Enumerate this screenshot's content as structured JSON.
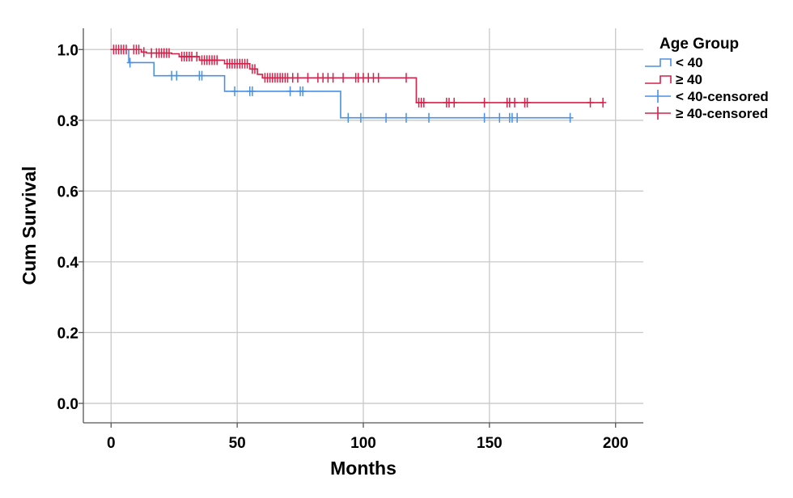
{
  "chart_data": {
    "type": "line",
    "subtype": "kaplan-meier",
    "xlabel": "Months",
    "ylabel": "Cum Survival",
    "xlim": [
      -11,
      211
    ],
    "ylim": [
      -0.055,
      1.06
    ],
    "xticks": [
      0,
      50,
      100,
      150,
      200
    ],
    "yticks": [
      0.0,
      0.2,
      0.4,
      0.6,
      0.8,
      1.0
    ],
    "ytick_labels": [
      "0.0",
      "0.2",
      "0.4",
      "0.6",
      "0.8",
      "1.0"
    ],
    "grid": true,
    "legend": {
      "title": "Age Group",
      "placement": "top-right-outside",
      "entries": [
        {
          "label": "< 40",
          "kind": "step",
          "color": "#4a90e2"
        },
        {
          "label": "≥ 40",
          "kind": "step",
          "color": "#d6214a"
        },
        {
          "label": "< 40-censored",
          "kind": "cross",
          "color": "#4a90e2"
        },
        {
          "label": "≥ 40-censored",
          "kind": "cross",
          "color": "#d6214a"
        }
      ]
    },
    "series": [
      {
        "name": "< 40",
        "color": "#4a90e2",
        "steps": [
          [
            0,
            1.0
          ],
          [
            7,
            0.963
          ],
          [
            17,
            0.926
          ],
          [
            45,
            0.882
          ],
          [
            91,
            0.807
          ],
          [
            182,
            0.807
          ]
        ],
        "censored": [
          [
            7.5,
            0.963
          ],
          [
            24,
            0.926
          ],
          [
            26,
            0.926
          ],
          [
            35,
            0.926
          ],
          [
            36,
            0.926
          ],
          [
            49,
            0.882
          ],
          [
            55,
            0.882
          ],
          [
            56,
            0.882
          ],
          [
            71,
            0.882
          ],
          [
            75,
            0.882
          ],
          [
            76,
            0.882
          ],
          [
            94,
            0.807
          ],
          [
            99,
            0.807
          ],
          [
            109,
            0.807
          ],
          [
            117,
            0.807
          ],
          [
            126,
            0.807
          ],
          [
            148,
            0.807
          ],
          [
            154,
            0.807
          ],
          [
            158,
            0.807
          ],
          [
            159,
            0.807
          ],
          [
            161,
            0.807
          ],
          [
            182,
            0.807
          ]
        ]
      },
      {
        "name": "≥ 40",
        "color": "#d6214a",
        "steps": [
          [
            0,
            1.0
          ],
          [
            12,
            0.993
          ],
          [
            14,
            0.99
          ],
          [
            24,
            0.988
          ],
          [
            27,
            0.98
          ],
          [
            35,
            0.97
          ],
          [
            45,
            0.96
          ],
          [
            55,
            0.945
          ],
          [
            58,
            0.93
          ],
          [
            60,
            0.92
          ],
          [
            121,
            0.85
          ],
          [
            195,
            0.85
          ]
        ],
        "censored": [
          [
            1,
            1.0
          ],
          [
            2,
            1.0
          ],
          [
            3,
            1.0
          ],
          [
            4,
            1.0
          ],
          [
            5,
            1.0
          ],
          [
            6,
            1.0
          ],
          [
            9,
            1.0
          ],
          [
            10,
            1.0
          ],
          [
            11,
            1.0
          ],
          [
            13,
            0.993
          ],
          [
            16,
            0.99
          ],
          [
            18,
            0.99
          ],
          [
            19,
            0.99
          ],
          [
            20,
            0.99
          ],
          [
            21,
            0.99
          ],
          [
            22,
            0.99
          ],
          [
            23,
            0.99
          ],
          [
            28,
            0.98
          ],
          [
            29,
            0.98
          ],
          [
            30,
            0.98
          ],
          [
            31,
            0.98
          ],
          [
            32,
            0.98
          ],
          [
            34,
            0.98
          ],
          [
            36,
            0.97
          ],
          [
            37,
            0.97
          ],
          [
            38,
            0.97
          ],
          [
            39,
            0.97
          ],
          [
            40,
            0.97
          ],
          [
            41,
            0.97
          ],
          [
            42,
            0.97
          ],
          [
            46,
            0.96
          ],
          [
            47,
            0.96
          ],
          [
            48,
            0.96
          ],
          [
            49,
            0.96
          ],
          [
            50,
            0.96
          ],
          [
            51,
            0.96
          ],
          [
            52,
            0.96
          ],
          [
            53,
            0.96
          ],
          [
            54,
            0.96
          ],
          [
            56,
            0.945
          ],
          [
            57,
            0.945
          ],
          [
            61,
            0.92
          ],
          [
            62,
            0.92
          ],
          [
            63,
            0.92
          ],
          [
            64,
            0.92
          ],
          [
            65,
            0.92
          ],
          [
            66,
            0.92
          ],
          [
            67,
            0.92
          ],
          [
            68,
            0.92
          ],
          [
            69,
            0.92
          ],
          [
            70,
            0.92
          ],
          [
            72,
            0.92
          ],
          [
            74,
            0.92
          ],
          [
            78,
            0.92
          ],
          [
            82,
            0.92
          ],
          [
            84,
            0.92
          ],
          [
            86,
            0.92
          ],
          [
            88,
            0.92
          ],
          [
            92,
            0.92
          ],
          [
            97,
            0.92
          ],
          [
            98,
            0.92
          ],
          [
            100,
            0.92
          ],
          [
            102,
            0.92
          ],
          [
            104,
            0.92
          ],
          [
            106,
            0.92
          ],
          [
            117,
            0.92
          ],
          [
            122,
            0.85
          ],
          [
            123,
            0.85
          ],
          [
            124,
            0.85
          ],
          [
            133,
            0.85
          ],
          [
            134,
            0.85
          ],
          [
            136,
            0.85
          ],
          [
            148,
            0.85
          ],
          [
            157,
            0.85
          ],
          [
            158,
            0.85
          ],
          [
            160,
            0.85
          ],
          [
            164,
            0.85
          ],
          [
            165,
            0.85
          ],
          [
            190,
            0.85
          ],
          [
            195,
            0.85
          ]
        ]
      }
    ]
  }
}
